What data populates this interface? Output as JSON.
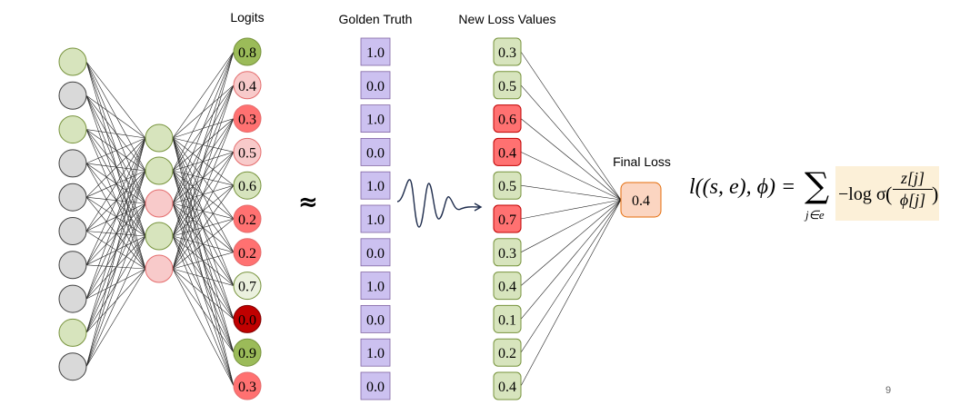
{
  "headers": {
    "logits": "Logits",
    "golden_truth": "Golden Truth",
    "new_loss_values": "New Loss Values",
    "final_loss": "Final Loss"
  },
  "approx_symbol": "≈",
  "input_layer": [
    "light-green",
    "gray",
    "light-green",
    "gray",
    "gray",
    "gray",
    "gray",
    "gray",
    "light-green",
    "gray"
  ],
  "hidden_layer": [
    "light-green",
    "light-green",
    "pink",
    "light-green",
    "pink"
  ],
  "logits": [
    {
      "value": "0.8",
      "color": "#9bbb59"
    },
    {
      "value": "0.4",
      "color": "#f8caca"
    },
    {
      "value": "0.3",
      "color": "#ff7171"
    },
    {
      "value": "0.5",
      "color": "#f8caca"
    },
    {
      "value": "0.6",
      "color": "#d7e4bd"
    },
    {
      "value": "0.2",
      "color": "#ff7171"
    },
    {
      "value": "0.2",
      "color": "#ff7171"
    },
    {
      "value": "0.7",
      "color": "#ebf1de"
    },
    {
      "value": "0.0",
      "color": "#c00000"
    },
    {
      "value": "0.9",
      "color": "#9bbb59"
    },
    {
      "value": "0.3",
      "color": "#ff7171"
    }
  ],
  "golden_truth": [
    "1.0",
    "0.0",
    "1.0",
    "0.0",
    "1.0",
    "1.0",
    "0.0",
    "1.0",
    "0.0",
    "1.0",
    "0.0"
  ],
  "new_loss_values": [
    {
      "value": "0.3",
      "color": "#d7e4bd"
    },
    {
      "value": "0.5",
      "color": "#d7e4bd"
    },
    {
      "value": "0.6",
      "color": "#ff7171"
    },
    {
      "value": "0.4",
      "color": "#ff7171"
    },
    {
      "value": "0.5",
      "color": "#d7e4bd"
    },
    {
      "value": "0.7",
      "color": "#ff7171"
    },
    {
      "value": "0.3",
      "color": "#d7e4bd"
    },
    {
      "value": "0.4",
      "color": "#d7e4bd"
    },
    {
      "value": "0.1",
      "color": "#d7e4bd"
    },
    {
      "value": "0.2",
      "color": "#d7e4bd"
    },
    {
      "value": "0.4",
      "color": "#d7e4bd"
    }
  ],
  "final_loss": "0.4",
  "formula": {
    "lhs": "l((s, e), ϕ) =",
    "sum": "∑",
    "sub": "j∈e",
    "neglog": "−log σ",
    "num": "z[j]",
    "den": "ϕ[j]",
    "open": "(",
    "close": ")"
  },
  "page_number": "9",
  "colors": {
    "light_green": "#d7e4bd",
    "gray": "#d9d9d9",
    "pink": "#f8caca",
    "green_edge": "#77933c",
    "gray_edge": "#404040",
    "pink_edge": "#e46c6c",
    "purple": "#ccc1f0",
    "purple_edge": "#8064a2",
    "final_fill": "#fbd5c1",
    "final_edge": "#e46c0a",
    "formula_bg": "#fcf0d8"
  }
}
